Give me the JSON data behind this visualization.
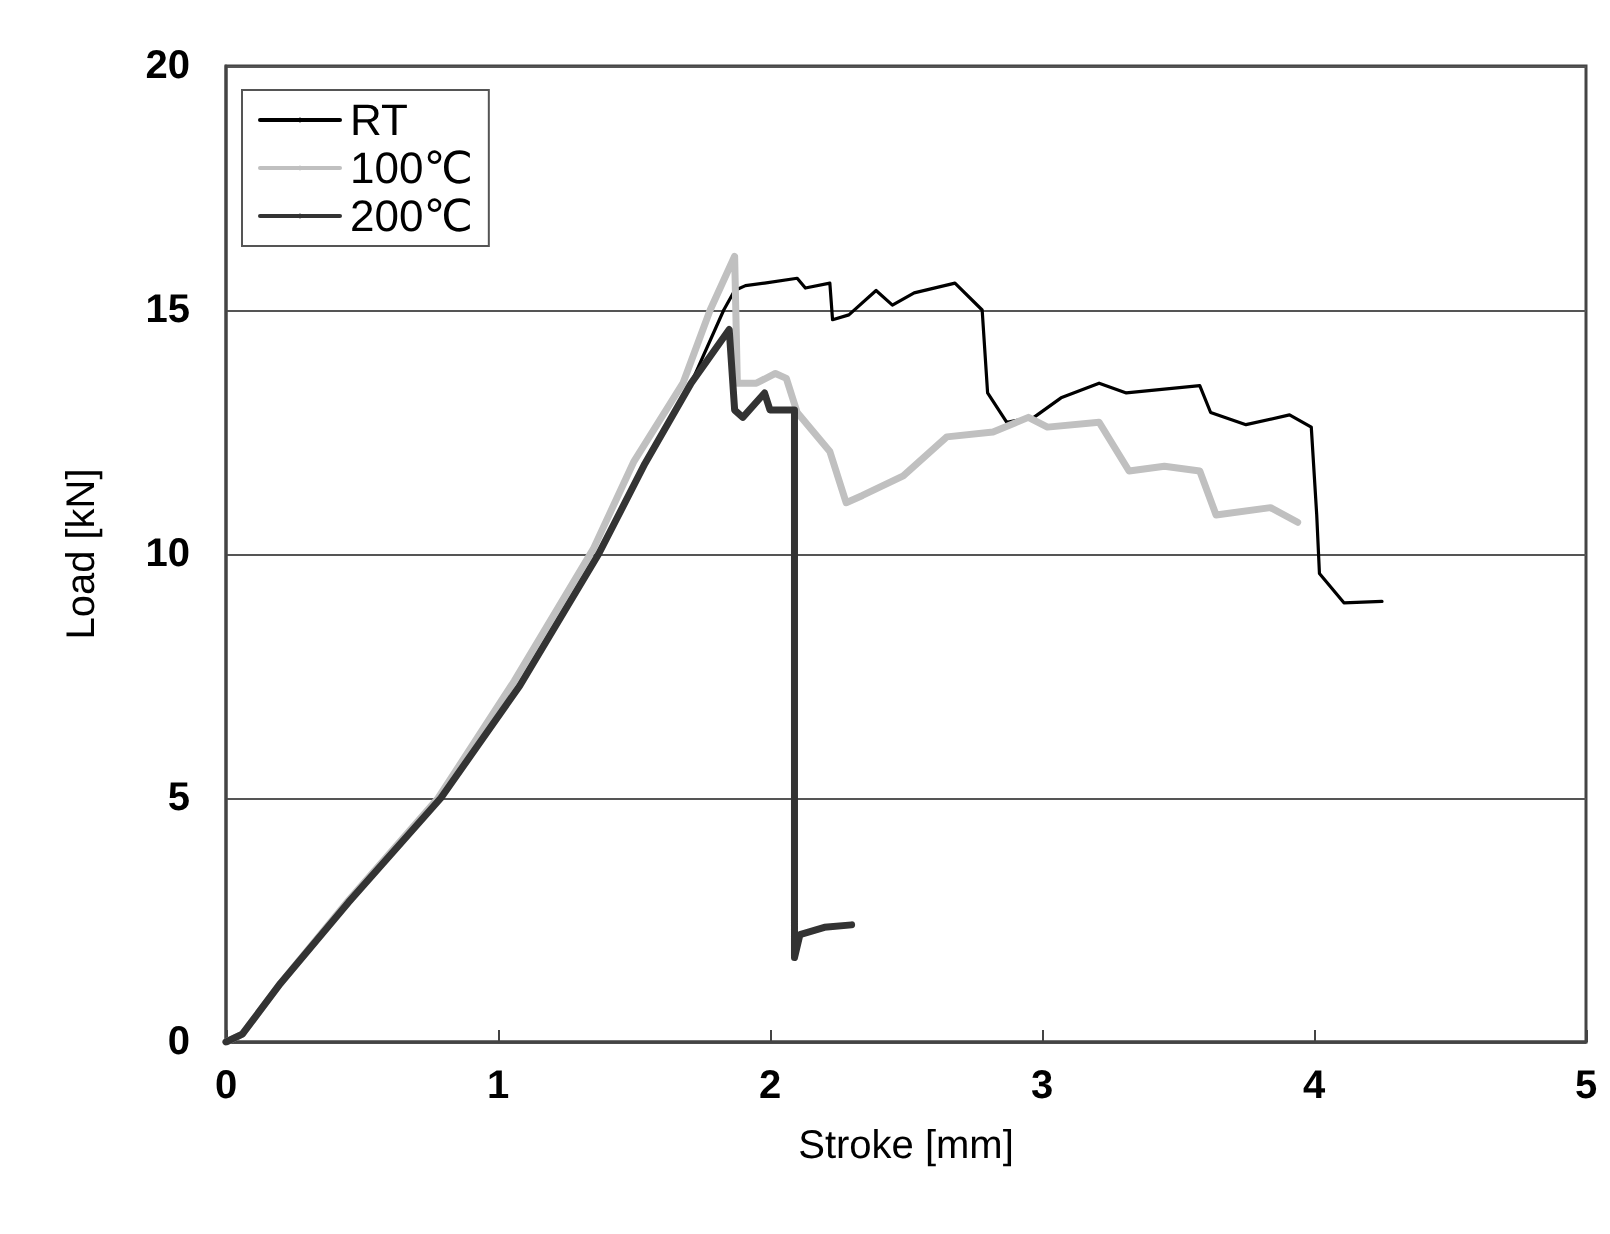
{
  "chart_data": {
    "type": "line",
    "xlabel": "Stroke [mm]",
    "ylabel": "Load [kN]",
    "xlim": [
      0,
      5
    ],
    "xticks": [
      0,
      1,
      2,
      3,
      4,
      5
    ],
    "ylim": [
      0,
      20
    ],
    "yticks": [
      0,
      5,
      10,
      15,
      20
    ],
    "grid": "y",
    "legend": "top left",
    "marker": "none",
    "line_style": "solid",
    "series": [
      {
        "name": "RT",
        "color": "#000000",
        "x": [
          0,
          0.06,
          0.2,
          0.45,
          0.79,
          1.08,
          1.37,
          1.54,
          1.71,
          1.83,
          1.87,
          1.91,
          1.98,
          2.1,
          2.13,
          2.22,
          2.23,
          2.29,
          2.39,
          2.45,
          2.53,
          2.68,
          2.78,
          2.8,
          2.87,
          2.97,
          3.07,
          3.21,
          3.31,
          3.58,
          3.62,
          3.75,
          3.91,
          3.99,
          4.01,
          4.02,
          4.11,
          4.25
        ],
        "values": [
          0,
          0.16,
          1.2,
          2.86,
          5.0,
          7.3,
          10.0,
          11.85,
          13.5,
          15.0,
          15.4,
          15.5,
          15.55,
          15.65,
          15.45,
          15.55,
          14.8,
          14.9,
          15.4,
          15.1,
          15.35,
          15.55,
          15.0,
          13.3,
          12.7,
          12.8,
          13.2,
          13.5,
          13.3,
          13.45,
          12.9,
          12.65,
          12.85,
          12.6,
          10.8,
          9.6,
          9.0,
          9.03
        ]
      },
      {
        "name": "100℃",
        "color": "#c0c0c0",
        "x": [
          0,
          0.06,
          0.2,
          0.45,
          0.78,
          1.06,
          1.35,
          1.5,
          1.68,
          1.78,
          1.87,
          1.88,
          1.95,
          2.02,
          2.06,
          2.1,
          2.22,
          2.28,
          2.34,
          2.49,
          2.65,
          2.82,
          2.95,
          3.02,
          3.21,
          3.32,
          3.45,
          3.58,
          3.64,
          3.84,
          3.94
        ],
        "values": [
          0,
          0.16,
          1.2,
          2.9,
          5.0,
          7.4,
          10.1,
          11.9,
          13.5,
          15.0,
          16.1,
          13.5,
          13.5,
          13.7,
          13.6,
          12.9,
          12.1,
          11.05,
          11.2,
          11.6,
          12.4,
          12.5,
          12.8,
          12.6,
          12.7,
          11.7,
          11.8,
          11.7,
          10.8,
          10.95,
          10.65
        ]
      },
      {
        "name": "200℃",
        "color": "#333333",
        "x": [
          0,
          0.06,
          0.2,
          0.45,
          0.79,
          1.08,
          1.37,
          1.54,
          1.71,
          1.85,
          1.87,
          1.9,
          1.98,
          2.0,
          2.09,
          2.09,
          2.11,
          2.2,
          2.3
        ],
        "values": [
          0,
          0.16,
          1.2,
          2.86,
          5.0,
          7.3,
          10.0,
          11.85,
          13.5,
          14.6,
          12.95,
          12.8,
          13.3,
          12.95,
          12.95,
          1.73,
          2.2,
          2.35,
          2.4
        ]
      }
    ]
  }
}
